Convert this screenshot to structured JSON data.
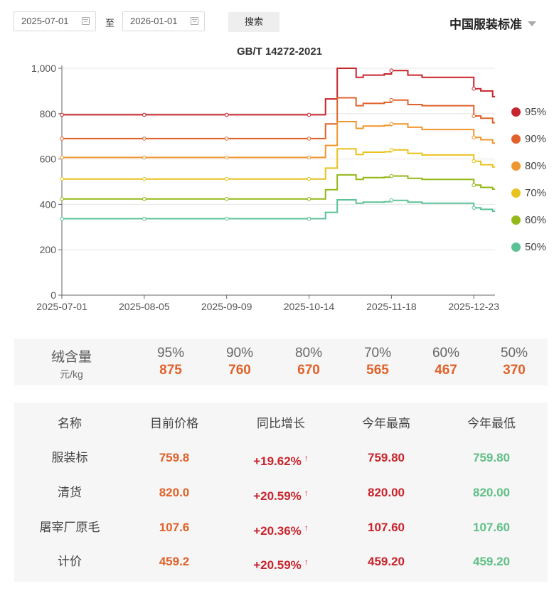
{
  "filters": {
    "start_date": "2025-07-01",
    "range_separator": "至",
    "end_date": "2026-01-01",
    "search_label": "搜索",
    "standard_selector": "中国服装标准"
  },
  "chart_data": {
    "type": "line",
    "step": true,
    "title": "GB/T 14272-2021",
    "xlabel": "",
    "ylabel": "",
    "ylim": [
      0,
      1000
    ],
    "y_ticks": [
      0,
      200,
      400,
      600,
      800,
      1000
    ],
    "y_tick_labels": [
      "0",
      "200",
      "400",
      "600",
      "800",
      "1,000"
    ],
    "x_ticks": [
      "2025-07-01",
      "2025-08-05",
      "2025-09-09",
      "2025-10-14",
      "2025-11-18",
      "2025-12-23"
    ],
    "x_range": [
      "2025-07-01",
      "2026-01-01"
    ],
    "grid": true,
    "legend_position": "right",
    "x": [
      "2025-07-01",
      "2025-08-05",
      "2025-09-09",
      "2025-10-14",
      "2025-10-21",
      "2025-10-26",
      "2025-11-03",
      "2025-11-06",
      "2025-11-15",
      "2025-11-18",
      "2025-11-25",
      "2025-12-01",
      "2025-12-23",
      "2025-12-26",
      "2025-12-31",
      "2026-01-01"
    ],
    "series": [
      {
        "name": "95%",
        "color": "#c8242c",
        "values": [
          795,
          795,
          795,
          795,
          865,
          1000,
          960,
          970,
          975,
          990,
          970,
          960,
          910,
          900,
          875,
          875
        ]
      },
      {
        "name": "90%",
        "color": "#e0622a",
        "values": [
          690,
          690,
          690,
          690,
          755,
          870,
          835,
          845,
          850,
          860,
          840,
          835,
          790,
          780,
          760,
          760
        ]
      },
      {
        "name": "80%",
        "color": "#f0962e",
        "values": [
          607,
          607,
          607,
          607,
          660,
          765,
          735,
          745,
          748,
          755,
          740,
          730,
          695,
          685,
          670,
          670
        ]
      },
      {
        "name": "70%",
        "color": "#e8c21f",
        "values": [
          512,
          512,
          512,
          512,
          560,
          645,
          620,
          630,
          632,
          640,
          625,
          618,
          590,
          575,
          565,
          565
        ]
      },
      {
        "name": "60%",
        "color": "#94b817",
        "values": [
          424,
          424,
          424,
          424,
          465,
          530,
          510,
          518,
          520,
          525,
          515,
          510,
          485,
          475,
          467,
          467
        ]
      },
      {
        "name": "50%",
        "color": "#5cc197",
        "values": [
          337,
          337,
          337,
          337,
          365,
          420,
          405,
          410,
          412,
          418,
          410,
          405,
          385,
          378,
          370,
          370
        ]
      }
    ]
  },
  "summary": {
    "label_line1": "绒含量",
    "label_line2": "元/kg",
    "grades": [
      "95%",
      "90%",
      "80%",
      "70%",
      "60%",
      "50%"
    ],
    "prices": [
      "875",
      "760",
      "670",
      "565",
      "467",
      "370"
    ]
  },
  "price_table": {
    "headers": [
      "名称",
      "目前价格",
      "同比增长",
      "今年最高",
      "今年最低"
    ],
    "up_arrow": "↑",
    "rows": [
      {
        "name": "服装标",
        "current": "759.8",
        "yoy": "+19.62%",
        "high": "759.80",
        "low": "759.80"
      },
      {
        "name": "清货",
        "current": "820.0",
        "yoy": "+20.59%",
        "high": "820.00",
        "low": "820.00"
      },
      {
        "name": "屠宰厂原毛",
        "current": "107.6",
        "yoy": "+20.36%",
        "high": "107.60",
        "low": "107.60"
      },
      {
        "name": "计价",
        "current": "459.2",
        "yoy": "+20.59%",
        "high": "459.20",
        "low": "459.20"
      }
    ]
  }
}
